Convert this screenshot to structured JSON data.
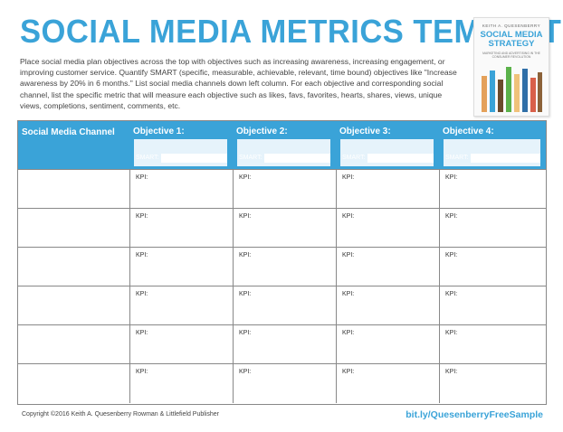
{
  "title": "SOCIAL MEDIA METRICS TEMPLATE",
  "description": "Place social media plan objectives across the top with objectives such as increasing awareness, increasing engagement, or improving customer service. Quantify SMART (specific, measurable, achievable, relevant, time bound) objectives like \"Increase awareness by 20% in 6 months.\" List social media channels down left column. For each objective and corresponding social channel, list the specific metric that will measure each objective such as likes, favs, favorites, hearts, shares, views, unique views, completions, sentiment, comments, etc.",
  "book": {
    "author": "KEITH A. QUESENBERRY",
    "title_line1": "SOCIAL MEDIA",
    "title_line2": "STRATEGY",
    "subtitle": "MARKETING AND ADVERTISING IN THE CONSUMER REVOLUTION"
  },
  "table": {
    "channel_header": "Social Media Channel",
    "objectives": [
      {
        "label": "Objective 1:",
        "smart": "SMART:"
      },
      {
        "label": "Objective 2:",
        "smart": "SMART:"
      },
      {
        "label": "Objective 3:",
        "smart": "SMART:"
      },
      {
        "label": "Objective 4:",
        "smart": "SMART:"
      }
    ],
    "kpi_label": "KPI:",
    "row_count": 6
  },
  "footer": {
    "copyright": "Copyright ©2016 Keith A. Quesenberry Rowman & Littlefield Publisher",
    "link": "bit.ly/QuesenberryFreeSample"
  },
  "colors": {
    "accent": "#3aa3d8"
  }
}
